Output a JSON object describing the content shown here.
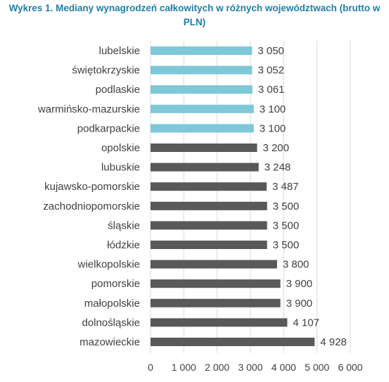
{
  "chart_data": {
    "type": "bar",
    "orientation": "horizontal",
    "title": "Wykres 1. Mediany wynagrodzeń całkowitych w różnych województwach (brutto w PLN)",
    "categories": [
      "lubelskie",
      "świętokrzyskie",
      "podlaskie",
      "warmińsko-mazurskie",
      "podkarpackie",
      "opolskie",
      "lubuskie",
      "kujawsko-pomorskie",
      "zachodniopomorskie",
      "śląskie",
      "łódzkie",
      "wielkopolskie",
      "pomorskie",
      "małopolskie",
      "dolnośląskie",
      "mazowieckie"
    ],
    "values": [
      3050,
      3052,
      3061,
      3100,
      3100,
      3200,
      3248,
      3487,
      3500,
      3500,
      3500,
      3800,
      3900,
      3900,
      4107,
      4928
    ],
    "value_labels": [
      "3 050",
      "3 052",
      "3 061",
      "3 100",
      "3 100",
      "3 200",
      "3 248",
      "3 487",
      "3 500",
      "3 500",
      "3 500",
      "3 800",
      "3 900",
      "3 900",
      "4 107",
      "4 928"
    ],
    "highlight_count": 5,
    "colors": {
      "highlight": "#7ec8d8",
      "default": "#595959",
      "title": "#1f7fa8"
    },
    "xlim": [
      0,
      6000
    ],
    "x_ticks": [
      0,
      1000,
      2000,
      3000,
      4000,
      5000,
      6000
    ],
    "x_tick_labels": [
      "0",
      "1 000",
      "2 000",
      "3 000",
      "4 000",
      "5 000",
      "6 000"
    ],
    "grid": true,
    "xlabel": "",
    "ylabel": ""
  }
}
